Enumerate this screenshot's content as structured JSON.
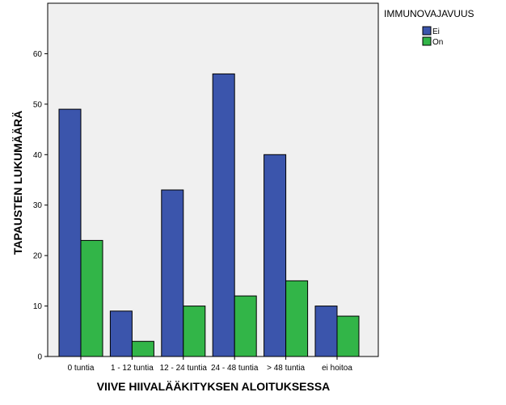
{
  "chart_data": {
    "type": "bar",
    "xlabel": "VIIVE HIIVALÄÄKITYKSEN ALOITUKSESSA",
    "ylabel": "TAPAUSTEN LUKUMÄÄRÄ",
    "categories": [
      "0 tuntia",
      "1 - 12 tuntia",
      "12 - 24 tuntia",
      "24 - 48 tuntia",
      "> 48 tuntia",
      "ei hoitoa"
    ],
    "yticks": [
      "0",
      "10",
      "20",
      "30",
      "40",
      "50",
      "60"
    ],
    "ylim": [
      0,
      70
    ],
    "grid": false,
    "legend": {
      "title": "IMMUNOVAJAVUUS",
      "placement": "right"
    },
    "series": [
      {
        "name": "Ei",
        "color": "#3B55AC",
        "values": [
          49,
          9,
          33,
          56,
          40,
          10
        ]
      },
      {
        "name": "On",
        "color": "#32B548",
        "values": [
          23,
          3,
          10,
          12,
          15,
          8
        ]
      }
    ],
    "plot_background": "#F0F0F0"
  }
}
